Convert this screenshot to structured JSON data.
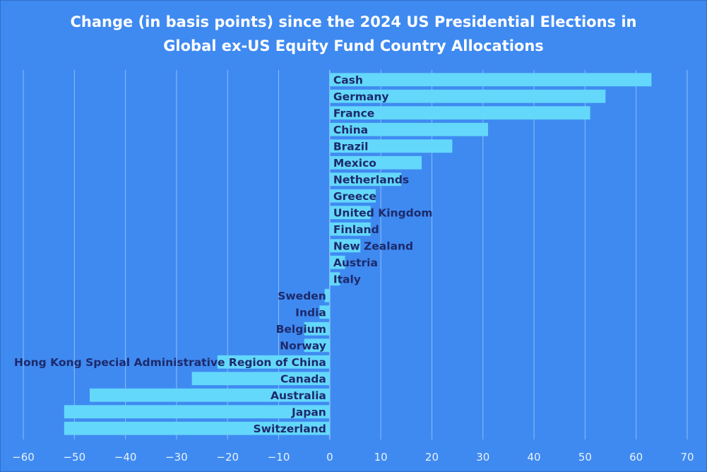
{
  "chart_data": {
    "type": "bar",
    "orientation": "horizontal",
    "title_line1": "Change (in basis points) since the 2024 US Presidential Elections in",
    "title_line2": "Global ex-US Equity Fund Country Allocations",
    "categories": [
      "Cash",
      "Germany",
      "France",
      "China",
      "Brazil",
      "Mexico",
      "Netherlands",
      "Greece",
      "United Kingdom",
      "Finland",
      "New Zealand",
      "Austria",
      "Italy",
      "Sweden",
      "India",
      "Belgium",
      "Norway",
      "Hong Kong Special Administrative Region of China",
      "Canada",
      "Australia",
      "Japan",
      "Switzerland"
    ],
    "values": [
      63,
      54,
      51,
      31,
      24,
      18,
      14,
      9,
      8,
      8,
      6,
      3,
      2,
      -1,
      -2,
      -5,
      -5,
      -22,
      -27,
      -47,
      -52,
      -52
    ],
    "xlim": [
      -60,
      70
    ],
    "xticks": [
      -60,
      -50,
      -40,
      -30,
      -20,
      -10,
      0,
      10,
      20,
      30,
      40,
      50,
      60,
      70
    ],
    "xlabel": "",
    "ylabel": "",
    "grid": "vertical",
    "colors": {
      "background": "#3f8af1",
      "bar": "#64d8fb",
      "grid": "#8fbdf6",
      "label": "#1d2a6b",
      "title": "#ffffff"
    }
  }
}
